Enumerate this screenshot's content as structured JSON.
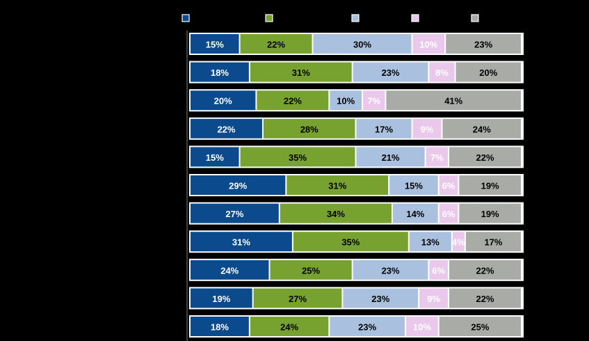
{
  "chart_data": {
    "type": "bar",
    "orientation": "horizontal",
    "stacked": true,
    "percent_stacked": true,
    "title": "",
    "xlabel": "",
    "ylabel": "",
    "legend_position": "top",
    "grid": false,
    "categories": [
      "",
      "",
      "",
      "",
      "",
      "",
      "",
      "",
      "",
      "",
      ""
    ],
    "series": [
      {
        "color": "#0b4a8c",
        "label_color": "#ffffff",
        "values": [
          15,
          18,
          20,
          22,
          15,
          29,
          27,
          31,
          24,
          19,
          18
        ]
      },
      {
        "color": "#77a22f",
        "label_color": "#000000",
        "values": [
          22,
          31,
          22,
          28,
          35,
          31,
          34,
          35,
          25,
          27,
          24
        ]
      },
      {
        "color": "#a9c1df",
        "label_color": "#000000",
        "values": [
          30,
          23,
          10,
          17,
          21,
          15,
          14,
          13,
          23,
          23,
          23
        ]
      },
      {
        "color": "#e9c8ec",
        "label_color": "#ffffff",
        "values": [
          10,
          8,
          7,
          9,
          7,
          6,
          6,
          4,
          6,
          9,
          10
        ]
      },
      {
        "color": "#a8aba6",
        "label_color": "#000000",
        "values": [
          23,
          20,
          41,
          24,
          22,
          19,
          19,
          17,
          22,
          22,
          25
        ]
      }
    ],
    "value_suffix": "%"
  }
}
